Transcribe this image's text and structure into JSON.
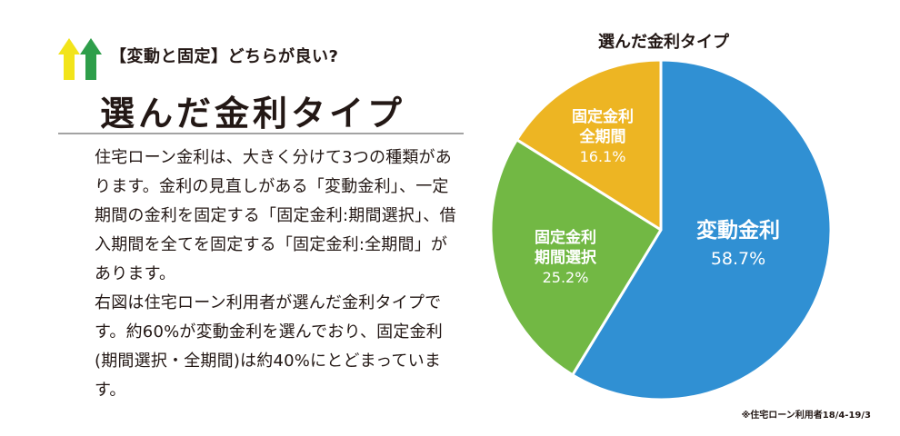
{
  "header": {
    "kicker": "【変動と固定】どちらが良い?",
    "title": "選んだ金利タイプ"
  },
  "article": {
    "paragraphs": [
      "住宅ローン金利は、大きく分けて3つの種類があります。金利の見直しがある「変動金利」、一定期間の金利を固定する「固定金利:期間選択」、借入期間を全てを固定する「固定金利:全期間」があります。",
      "右図は住宅ローン利用者が選んだ金利タイプです。約60%が変動金利を選んでおり、固定金利(期間選択・全期間)は約40%にとどまっています。"
    ]
  },
  "chart_data": {
    "type": "pie",
    "title": "選んだ金利タイプ",
    "slices": [
      {
        "name": "変動金利",
        "value": 58.7,
        "label": "58.7%",
        "color": "#3090d3"
      },
      {
        "name": "固定金利 期間選択",
        "value": 25.2,
        "label": "25.2%",
        "color": "#72b844"
      },
      {
        "name": "固定金利 全期間",
        "value": 16.1,
        "label": "16.1%",
        "color": "#edb523"
      }
    ],
    "footnote": "※住宅ローン利用者18/4-19/3"
  },
  "colors": {
    "logo_yellow": "#f2e41a",
    "logo_green": "#2e9e4a",
    "slice_border": "#ffffff"
  },
  "icons": {
    "logo": "double-up-arrow-icon"
  }
}
